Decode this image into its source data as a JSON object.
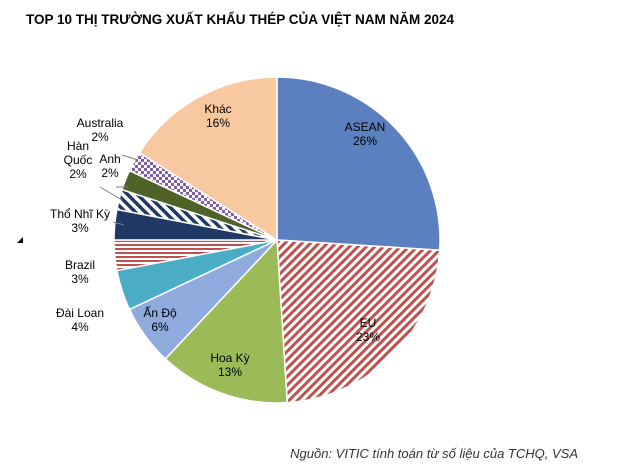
{
  "chart_data": {
    "type": "pie",
    "title": "TOP 10 THỊ TRƯỜNG XUẤT KHẨU THÉP CỦA VIỆT NAM NĂM 2024",
    "source": "Nguồn: VITIC tính toán từ số liệu của TCHQ, VSA",
    "unit": "%",
    "slices": [
      {
        "label": "ASEAN",
        "lines": [
          "ASEAN"
        ],
        "value": 26,
        "value_label": "26%",
        "color": "#5b7fbf",
        "pattern": "solid"
      },
      {
        "label": "EU",
        "lines": [
          "EU"
        ],
        "value": 23,
        "value_label": "23%",
        "color": "#c0504d",
        "pattern": "diagonal-dark"
      },
      {
        "label": "Hoa Kỳ",
        "lines": [
          "Hoa Kỳ"
        ],
        "value": 13,
        "value_label": "13%",
        "color": "#9bbb59",
        "pattern": "solid"
      },
      {
        "label": "Ấn Độ",
        "lines": [
          "Ấn Độ"
        ],
        "value": 6,
        "value_label": "6%",
        "color": "#8faadc",
        "pattern": "solid"
      },
      {
        "label": "Đài Loan",
        "lines": [
          "Đài Loan"
        ],
        "value": 4,
        "value_label": "4%",
        "color": "#4bacc6",
        "pattern": "solid"
      },
      {
        "label": "Brazil",
        "lines": [
          "Brazil"
        ],
        "value": 3,
        "value_label": "3%",
        "color": "#c0504d",
        "pattern": "horizontal"
      },
      {
        "label": "Thổ Nhĩ Kỳ",
        "lines": [
          "Thổ Nhĩ Kỳ"
        ],
        "value": 3,
        "value_label": "3%",
        "color": "#1f3864",
        "pattern": "solid"
      },
      {
        "label": "Hàn Quốc",
        "lines": [
          "Hàn",
          "Quốc"
        ],
        "value": 2,
        "value_label": "2%",
        "color": "#1f3864",
        "pattern": "diagonal-bold"
      },
      {
        "label": "Anh",
        "lines": [
          "Anh"
        ],
        "value": 2,
        "value_label": "2%",
        "color": "#4f6228",
        "pattern": "solid"
      },
      {
        "label": "Australia",
        "lines": [
          "Australia"
        ],
        "value": 2,
        "value_label": "2%",
        "color": "#7f5fa8",
        "pattern": "checker"
      },
      {
        "label": "Khác",
        "lines": [
          "Khác"
        ],
        "value": 16,
        "value_label": "16%",
        "color": "#f8c9a0",
        "pattern": "solid"
      }
    ]
  }
}
